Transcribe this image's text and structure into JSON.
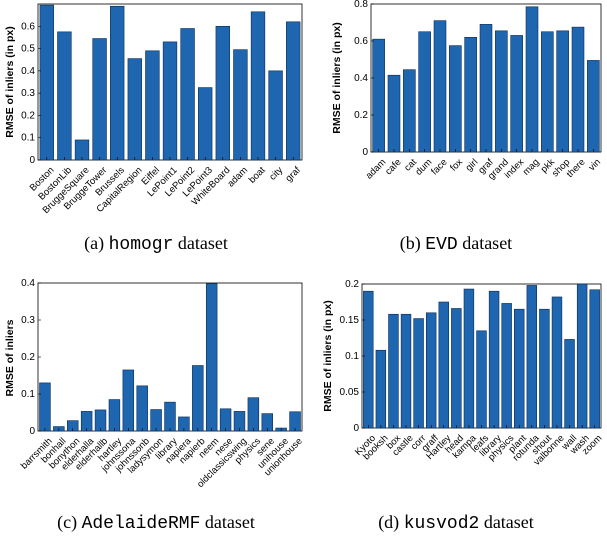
{
  "figure": {
    "bar_color": "#1f66b0",
    "bar_edge_color": "#0a2a52"
  },
  "captions": [
    {
      "prefix": "(a) ",
      "name": "homogr",
      "suffix": " dataset"
    },
    {
      "prefix": "(b) ",
      "name": "EVD",
      "suffix": " dataset"
    },
    {
      "prefix": "(c) ",
      "name": "AdelaideRMF",
      "suffix": " dataset"
    },
    {
      "prefix": "(d) ",
      "name": "kusvod2",
      "suffix": " dataset"
    }
  ],
  "chart_data": [
    {
      "type": "bar",
      "ylabel": "RMSE of inliers (in px)",
      "ylim": [
        0,
        0.7
      ],
      "yticks": [
        0,
        0.1,
        0.2,
        0.3,
        0.4,
        0.5,
        0.6
      ],
      "ytick_labels": [
        "0",
        "0.1",
        "0.2",
        "0.3",
        "0.4",
        "0.5",
        "0.6"
      ],
      "grid": false,
      "categories": [
        "Boston",
        "BostonLib",
        "BruggeSquare",
        "BruggeTower",
        "Brussels",
        "CapitalRegion",
        "Eiffel",
        "LePoint1",
        "LePoint2",
        "LePoint3",
        "WhiteBoard",
        "adam",
        "boat",
        "city",
        "graf"
      ],
      "values": [
        0.695,
        0.575,
        0.09,
        0.545,
        0.69,
        0.455,
        0.49,
        0.53,
        0.59,
        0.325,
        0.6,
        0.495,
        0.665,
        0.4,
        0.62
      ]
    },
    {
      "type": "bar",
      "ylabel": "RMSE of inliers (in px)",
      "ylim": [
        0,
        0.8
      ],
      "yticks": [
        0,
        0.2,
        0.4,
        0.6,
        0.8
      ],
      "ytick_labels": [
        "0",
        "0.2",
        "0.4",
        "0.6",
        "0.8"
      ],
      "grid": false,
      "categories": [
        "adam",
        "cafe",
        "cat",
        "dum",
        "face",
        "fox",
        "girl",
        "graf",
        "grand",
        "index",
        "mag",
        "pkk",
        "shop",
        "there",
        "vin"
      ],
      "values": [
        0.61,
        0.415,
        0.445,
        0.65,
        0.71,
        0.575,
        0.62,
        0.69,
        0.655,
        0.63,
        0.785,
        0.65,
        0.655,
        0.675,
        0.495
      ]
    },
    {
      "type": "bar",
      "ylabel": "RMSE of inliers",
      "ylim": [
        0,
        0.4
      ],
      "yticks": [
        0,
        0.1,
        0.2,
        0.3,
        0.4
      ],
      "ytick_labels": [
        "0",
        "0.1",
        "0.2",
        "0.3",
        "0.4"
      ],
      "grid": false,
      "categories": [
        "barrsmith",
        "bonhall",
        "bonython",
        "elderhalla",
        "elderhallb",
        "hartley",
        "johnssona",
        "johnssonb",
        "ladysymon",
        "library",
        "napiera",
        "napierb",
        "neem",
        "nese",
        "oldclassicswing",
        "physics",
        "sene",
        "unihouse",
        "unionhouse"
      ],
      "values": [
        0.13,
        0.012,
        0.028,
        0.053,
        0.057,
        0.085,
        0.165,
        0.122,
        0.058,
        0.078,
        0.038,
        0.177,
        0.398,
        0.06,
        0.053,
        0.09,
        0.047,
        0.008,
        0.052
      ]
    },
    {
      "type": "bar",
      "ylabel": "RMSE of inliers (in px)",
      "ylim": [
        0,
        0.2
      ],
      "yticks": [
        0,
        0.05,
        0.1,
        0.15,
        0.2
      ],
      "ytick_labels": [
        "0",
        "0.05",
        "0.1",
        "0.15",
        "0.2"
      ],
      "grid": false,
      "categories": [
        "Kyoto",
        "booksh",
        "box",
        "castle",
        "corr",
        "graff",
        "head",
        "kampa",
        "leafs",
        "library",
        "physics",
        "plant",
        "rotunda",
        "shout",
        "valbonne",
        "wall",
        "wash",
        "zoom",
        "Hartley"
      ],
      "values": [
        0.19,
        0.108,
        0.158,
        0.158,
        0.152,
        0.16,
        0.166,
        0.193,
        0.135,
        0.19,
        0.173,
        0.165,
        0.198,
        0.165,
        0.182,
        0.123,
        0.2,
        0.192,
        0.175
      ],
      "xtick_order": [
        "Kyoto",
        "booksh",
        "box",
        "castle",
        "corr",
        "graff",
        "Hartley",
        "head",
        "kampa",
        "leafs",
        "library",
        "physics",
        "plant",
        "rotunda",
        "shout",
        "valbonne",
        "wall",
        "wash",
        "zoom"
      ]
    }
  ]
}
